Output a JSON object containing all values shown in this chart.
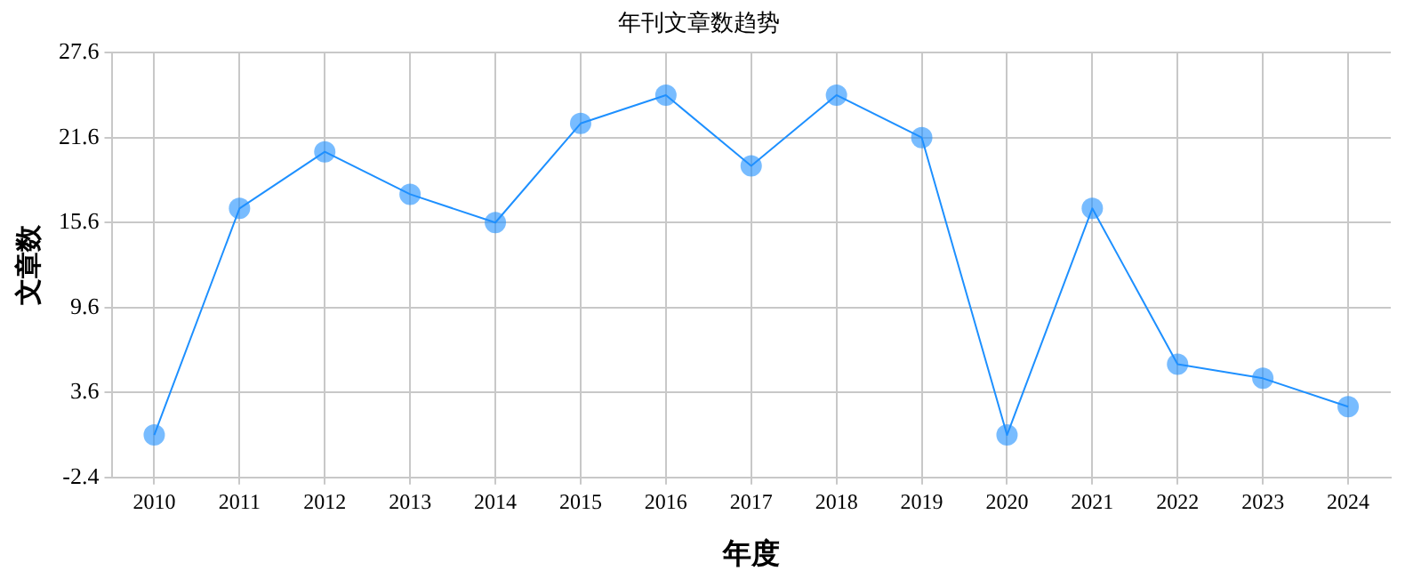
{
  "chart_data": {
    "type": "line",
    "title": "年刊文章数趋势",
    "xlabel": "年度",
    "ylabel": "文章数",
    "categories": [
      "2010",
      "2011",
      "2012",
      "2013",
      "2014",
      "2015",
      "2016",
      "2017",
      "2018",
      "2019",
      "2020",
      "2021",
      "2022",
      "2023",
      "2024"
    ],
    "series": [
      {
        "color": "#1e90ff",
        "values": [
          0.6,
          16.6,
          20.6,
          17.6,
          15.6,
          22.6,
          24.6,
          19.6,
          24.6,
          21.6,
          0.6,
          16.6,
          5.6,
          4.6,
          2.6
        ]
      }
    ],
    "ylim": [
      -2.4,
      27.6
    ],
    "yticks": [
      -2.4,
      3.6,
      9.6,
      15.6,
      21.6,
      27.6
    ],
    "grid": true,
    "legend": false,
    "marker": "circle",
    "line_style": "solid"
  }
}
